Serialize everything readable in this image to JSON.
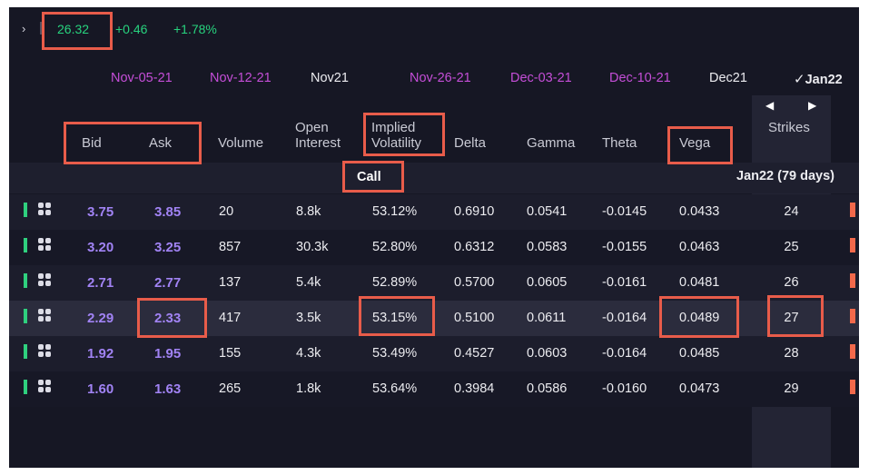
{
  "quote": {
    "chevron": "›",
    "price": "26.32",
    "change": "+0.46",
    "change_pct": "+1.78%",
    "color": "#27d37e"
  },
  "expirations": [
    {
      "label": "Nov-05-21",
      "kind": "weekly"
    },
    {
      "label": "Nov-12-21",
      "kind": "weekly"
    },
    {
      "label": "Nov21",
      "kind": "monthly"
    },
    {
      "label": "Nov-26-21",
      "kind": "weekly"
    },
    {
      "label": "Dec-03-21",
      "kind": "weekly"
    },
    {
      "label": "Dec-10-21",
      "kind": "weekly"
    },
    {
      "label": "Dec21",
      "kind": "monthly"
    },
    {
      "label": "Jan22",
      "kind": "active",
      "check": "✓"
    }
  ],
  "headers": {
    "bid": "Bid",
    "ask": "Ask",
    "volume": "Volume",
    "open_interest_1": "Open",
    "open_interest_2": "Interest",
    "iv_1": "Implied",
    "iv_2": "Volatility",
    "delta": "Delta",
    "gamma": "Gamma",
    "theta": "Theta",
    "vega": "Vega",
    "strikes": "Strikes",
    "arrow_left": "◀",
    "arrow_right": "▶"
  },
  "call_label": "Call",
  "expiry_note": "Jan22 (79 days)",
  "rows": [
    {
      "bid": "3.75",
      "ask": "3.85",
      "volume": "20",
      "oi": "8.8k",
      "iv": "53.12%",
      "delta": "0.6910",
      "gamma": "0.0541",
      "theta": "-0.0145",
      "vega": "0.0433",
      "strike": "24"
    },
    {
      "bid": "3.20",
      "ask": "3.25",
      "volume": "857",
      "oi": "30.3k",
      "iv": "52.80%",
      "delta": "0.6312",
      "gamma": "0.0583",
      "theta": "-0.0155",
      "vega": "0.0463",
      "strike": "25"
    },
    {
      "bid": "2.71",
      "ask": "2.77",
      "volume": "137",
      "oi": "5.4k",
      "iv": "52.89%",
      "delta": "0.5700",
      "gamma": "0.0605",
      "theta": "-0.0161",
      "vega": "0.0481",
      "strike": "26"
    },
    {
      "bid": "2.29",
      "ask": "2.33",
      "volume": "417",
      "oi": "3.5k",
      "iv": "53.15%",
      "delta": "0.5100",
      "gamma": "0.0611",
      "theta": "-0.0164",
      "vega": "0.0489",
      "strike": "27"
    },
    {
      "bid": "1.92",
      "ask": "1.95",
      "volume": "155",
      "oi": "4.3k",
      "iv": "53.49%",
      "delta": "0.4527",
      "gamma": "0.0603",
      "theta": "-0.0164",
      "vega": "0.0485",
      "strike": "28"
    },
    {
      "bid": "1.60",
      "ask": "1.63",
      "volume": "265",
      "oi": "1.8k",
      "iv": "53.64%",
      "delta": "0.3984",
      "gamma": "0.0586",
      "theta": "-0.0160",
      "vega": "0.0473",
      "strike": "29"
    }
  ],
  "colors": {
    "panel_bg": "#161724",
    "bid_ask": "#a183f4",
    "weekly_expiry": "#c54ed8",
    "annotation_box": "#e85c4a",
    "in_money_bar": "#2fd07e",
    "put_bar": "#f2694b"
  }
}
